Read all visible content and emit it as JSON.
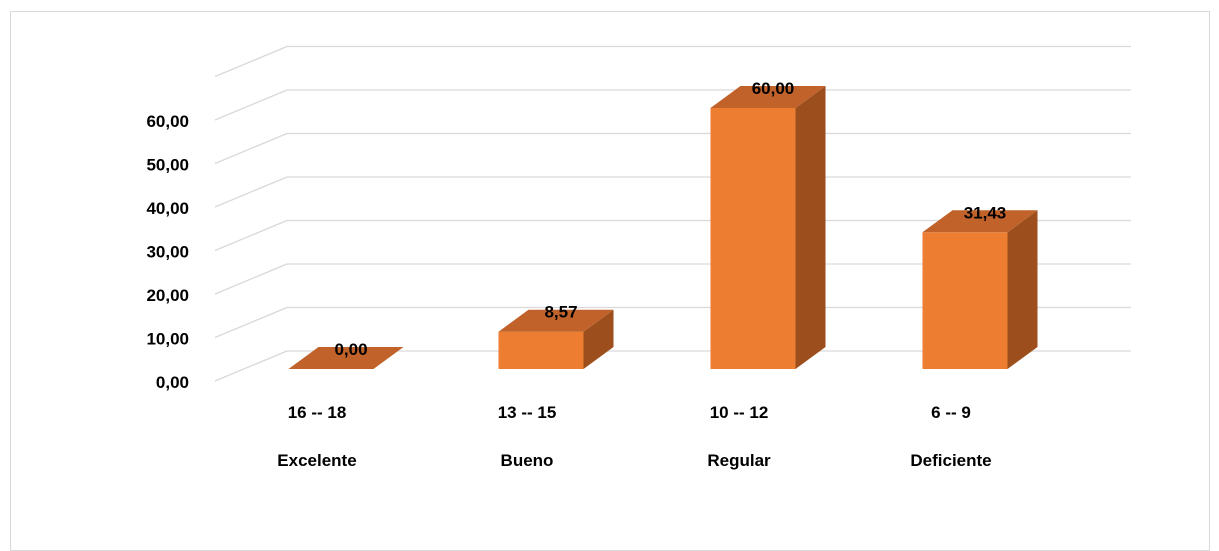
{
  "chart_data": {
    "type": "bar",
    "title": "",
    "xlabel": "",
    "ylabel": "",
    "categories": [
      {
        "range": "16 -- 18",
        "label": "Excelente"
      },
      {
        "range": "13 -- 15",
        "label": "Bueno"
      },
      {
        "range": "10 -- 12",
        "label": "Regular"
      },
      {
        "range": "6 -- 9",
        "label": "Deficiente"
      }
    ],
    "values": [
      0.0,
      8.57,
      60.0,
      31.43
    ],
    "data_labels": [
      "0,00",
      "8,57",
      "60,00",
      "31,43"
    ],
    "y_ticks": [
      "0,00",
      "10,00",
      "20,00",
      "30,00",
      "40,00",
      "50,00",
      "60,00"
    ],
    "ylim": [
      0,
      60
    ],
    "grid": true,
    "legend": "none",
    "style": "3d-column",
    "colors": {
      "bar_front": "#ED7D31",
      "bar_side": "#9C4E1C",
      "bar_top": "#C0622A",
      "grid": "#d9d9d9"
    }
  }
}
